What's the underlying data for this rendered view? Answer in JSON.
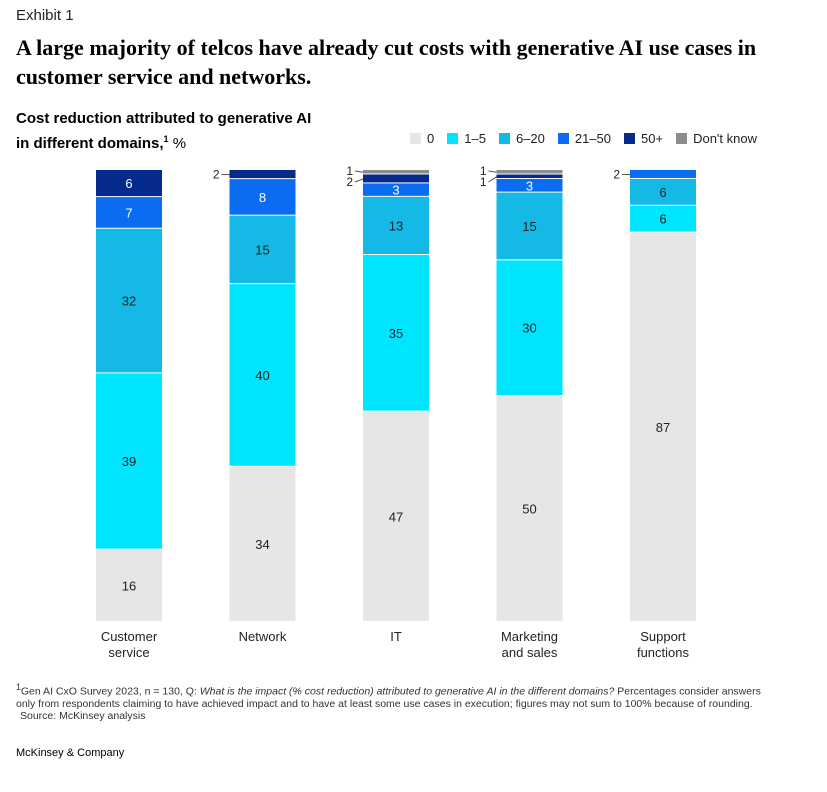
{
  "exhibit_label": "Exhibit 1",
  "title": "A large majority of telcos have already cut costs with generative AI use cases in customer service and networks.",
  "subtitle_line1": "Cost reduction attributed to generative AI",
  "subtitle_line2": "in different domains,",
  "subtitle_footnote_marker": "1",
  "subtitle_unit": " %",
  "colors": {
    "0": "#e6e6e6",
    "1–5": "#00e5ff",
    "6–20": "#14b9e6",
    "21–50": "#0a6cf0",
    "50+": "#062a8c",
    "Don't know": "#8c8c8c"
  },
  "chart_data": {
    "type": "bar",
    "stacked": true,
    "ylim": [
      0,
      100
    ],
    "categories": [
      "Customer\nservice",
      "Network",
      "IT",
      "Marketing\nand sales",
      "Support\nfunctions"
    ],
    "series": [
      {
        "name": "0",
        "values": [
          16,
          34,
          47,
          50,
          87
        ]
      },
      {
        "name": "1–5",
        "values": [
          39,
          40,
          35,
          30,
          6
        ]
      },
      {
        "name": "6–20",
        "values": [
          32,
          15,
          13,
          15,
          6
        ]
      },
      {
        "name": "21–50",
        "values": [
          7,
          8,
          3,
          3,
          2
        ]
      },
      {
        "name": "50+",
        "values": [
          6,
          2,
          2,
          1,
          0
        ]
      },
      {
        "name": "Don't know",
        "values": [
          0,
          0,
          1,
          1,
          0
        ]
      }
    ],
    "legend": [
      "0",
      "1–5",
      "6–20",
      "21–50",
      "50+",
      "Don't know"
    ],
    "legend_position": "top-right"
  },
  "footnote": {
    "marker": "1",
    "source_text": "Gen AI CxO Survey 2023, n =  130, Q: ",
    "question": "What is the impact (% cost reduction) attributed to generative AI in the different domains?",
    "rest": " Percentages consider answers only from respondents claiming to have achieved impact and to have at least some use cases in execution; figures may not sum to 100% because of rounding.",
    "source": "Source: McKinsey analysis"
  },
  "company": "McKinsey & Company"
}
